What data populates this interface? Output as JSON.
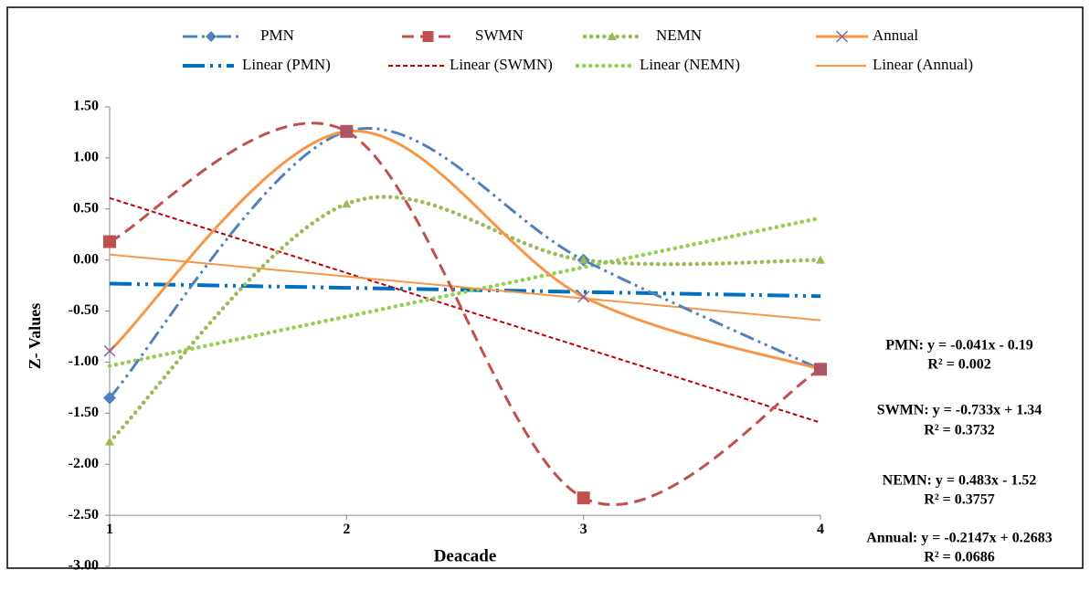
{
  "chart_data": {
    "type": "line",
    "xlabel": "Deacade",
    "ylabel": "Z- Values",
    "x": [
      1,
      2,
      3,
      4
    ],
    "xlim": [
      1,
      4
    ],
    "xticks": [
      1,
      2,
      3,
      4
    ],
    "ylim": [
      -3,
      1.5
    ],
    "yticks": [
      {
        "value": -3,
        "label": "-3.00"
      },
      {
        "value": -2.5,
        "label": "-2.50"
      },
      {
        "value": -2,
        "label": "-2.00"
      },
      {
        "value": -1.5,
        "label": "-1.50"
      },
      {
        "value": -1,
        "label": "-1.00"
      },
      {
        "value": -0.5,
        "label": "-0.50"
      },
      {
        "value": 0,
        "label": "0.00"
      },
      {
        "value": 0.5,
        "label": "0.50"
      },
      {
        "value": 1,
        "label": "1.00"
      },
      {
        "value": 1.5,
        "label": "1.50"
      }
    ],
    "x_axis_crossing": -2.5,
    "grid": false,
    "legend": "top",
    "series": [
      {
        "name": "PMN",
        "color": "#4f81bd",
        "values": [
          -1.35,
          1.26,
          0.0,
          -1.07
        ]
      },
      {
        "name": "SWMN",
        "color": "#c0504d",
        "values": [
          0.18,
          1.26,
          -2.33,
          -1.07
        ]
      },
      {
        "name": "NEMN",
        "color": "#9bbb59",
        "values": [
          -1.78,
          0.55,
          0.0,
          0.0
        ]
      },
      {
        "name": "Annual",
        "color": "#f79646",
        "values": [
          -0.89,
          1.26,
          -0.36,
          -1.07
        ]
      },
      {
        "name": "Linear (PMN)",
        "color": "#0070c0",
        "values": [
          -0.231,
          -0.272,
          -0.313,
          -0.354
        ]
      },
      {
        "name": "Linear (SWMN)",
        "color": "#c00000",
        "values": [
          0.607,
          -0.126,
          -0.859,
          -1.592
        ]
      },
      {
        "name": "Linear (NEMN)",
        "color": "#92d050",
        "values": [
          -1.037,
          -0.554,
          -0.071,
          0.412
        ]
      },
      {
        "name": "Linear (Annual)",
        "color": "#f79646",
        "values": [
          0.0536,
          -0.1611,
          -0.3758,
          -0.5905
        ]
      }
    ],
    "annotations": [
      "PMN: y = -0.041x - 0.19",
      "R² = 0.002",
      "SWMN: y = -0.733x + 1.34",
      "R² = 0.3732",
      "NEMN: y = 0.483x - 1.52",
      "R² = 0.3757",
      "Annual: y = -0.2147x + 0.2683",
      "R² = 0.0686"
    ]
  }
}
